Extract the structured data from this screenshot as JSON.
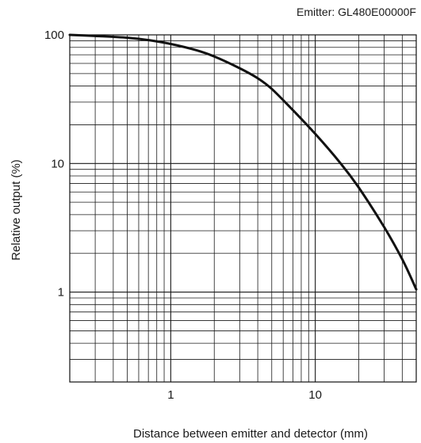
{
  "chart_data": {
    "type": "line",
    "subtitle": "Emitter: GL480E00000F",
    "xlabel": "Distance between emitter and detector (mm)",
    "ylabel": "Relative output (%)",
    "x_scale": "log",
    "y_scale": "log",
    "xlim": [
      0.2,
      50
    ],
    "ylim": [
      0.2,
      100
    ],
    "x_ticks": [
      {
        "value": 1,
        "label": "1"
      },
      {
        "value": 10,
        "label": "10"
      }
    ],
    "y_ticks": [
      {
        "value": 100,
        "label": "100"
      },
      {
        "value": 10,
        "label": "10"
      },
      {
        "value": 1,
        "label": "1"
      }
    ],
    "grid": true,
    "series": [
      {
        "x": [
          0.2,
          0.3,
          0.5,
          0.7,
          1,
          1.5,
          2,
          3,
          4,
          5,
          7,
          10,
          15,
          20,
          30,
          40,
          50
        ],
        "y": [
          100,
          98,
          95,
          91,
          85,
          76,
          68,
          55,
          46,
          38,
          26,
          17,
          10,
          6.5,
          3.2,
          1.8,
          1.05
        ],
        "color": "#111111"
      }
    ]
  }
}
